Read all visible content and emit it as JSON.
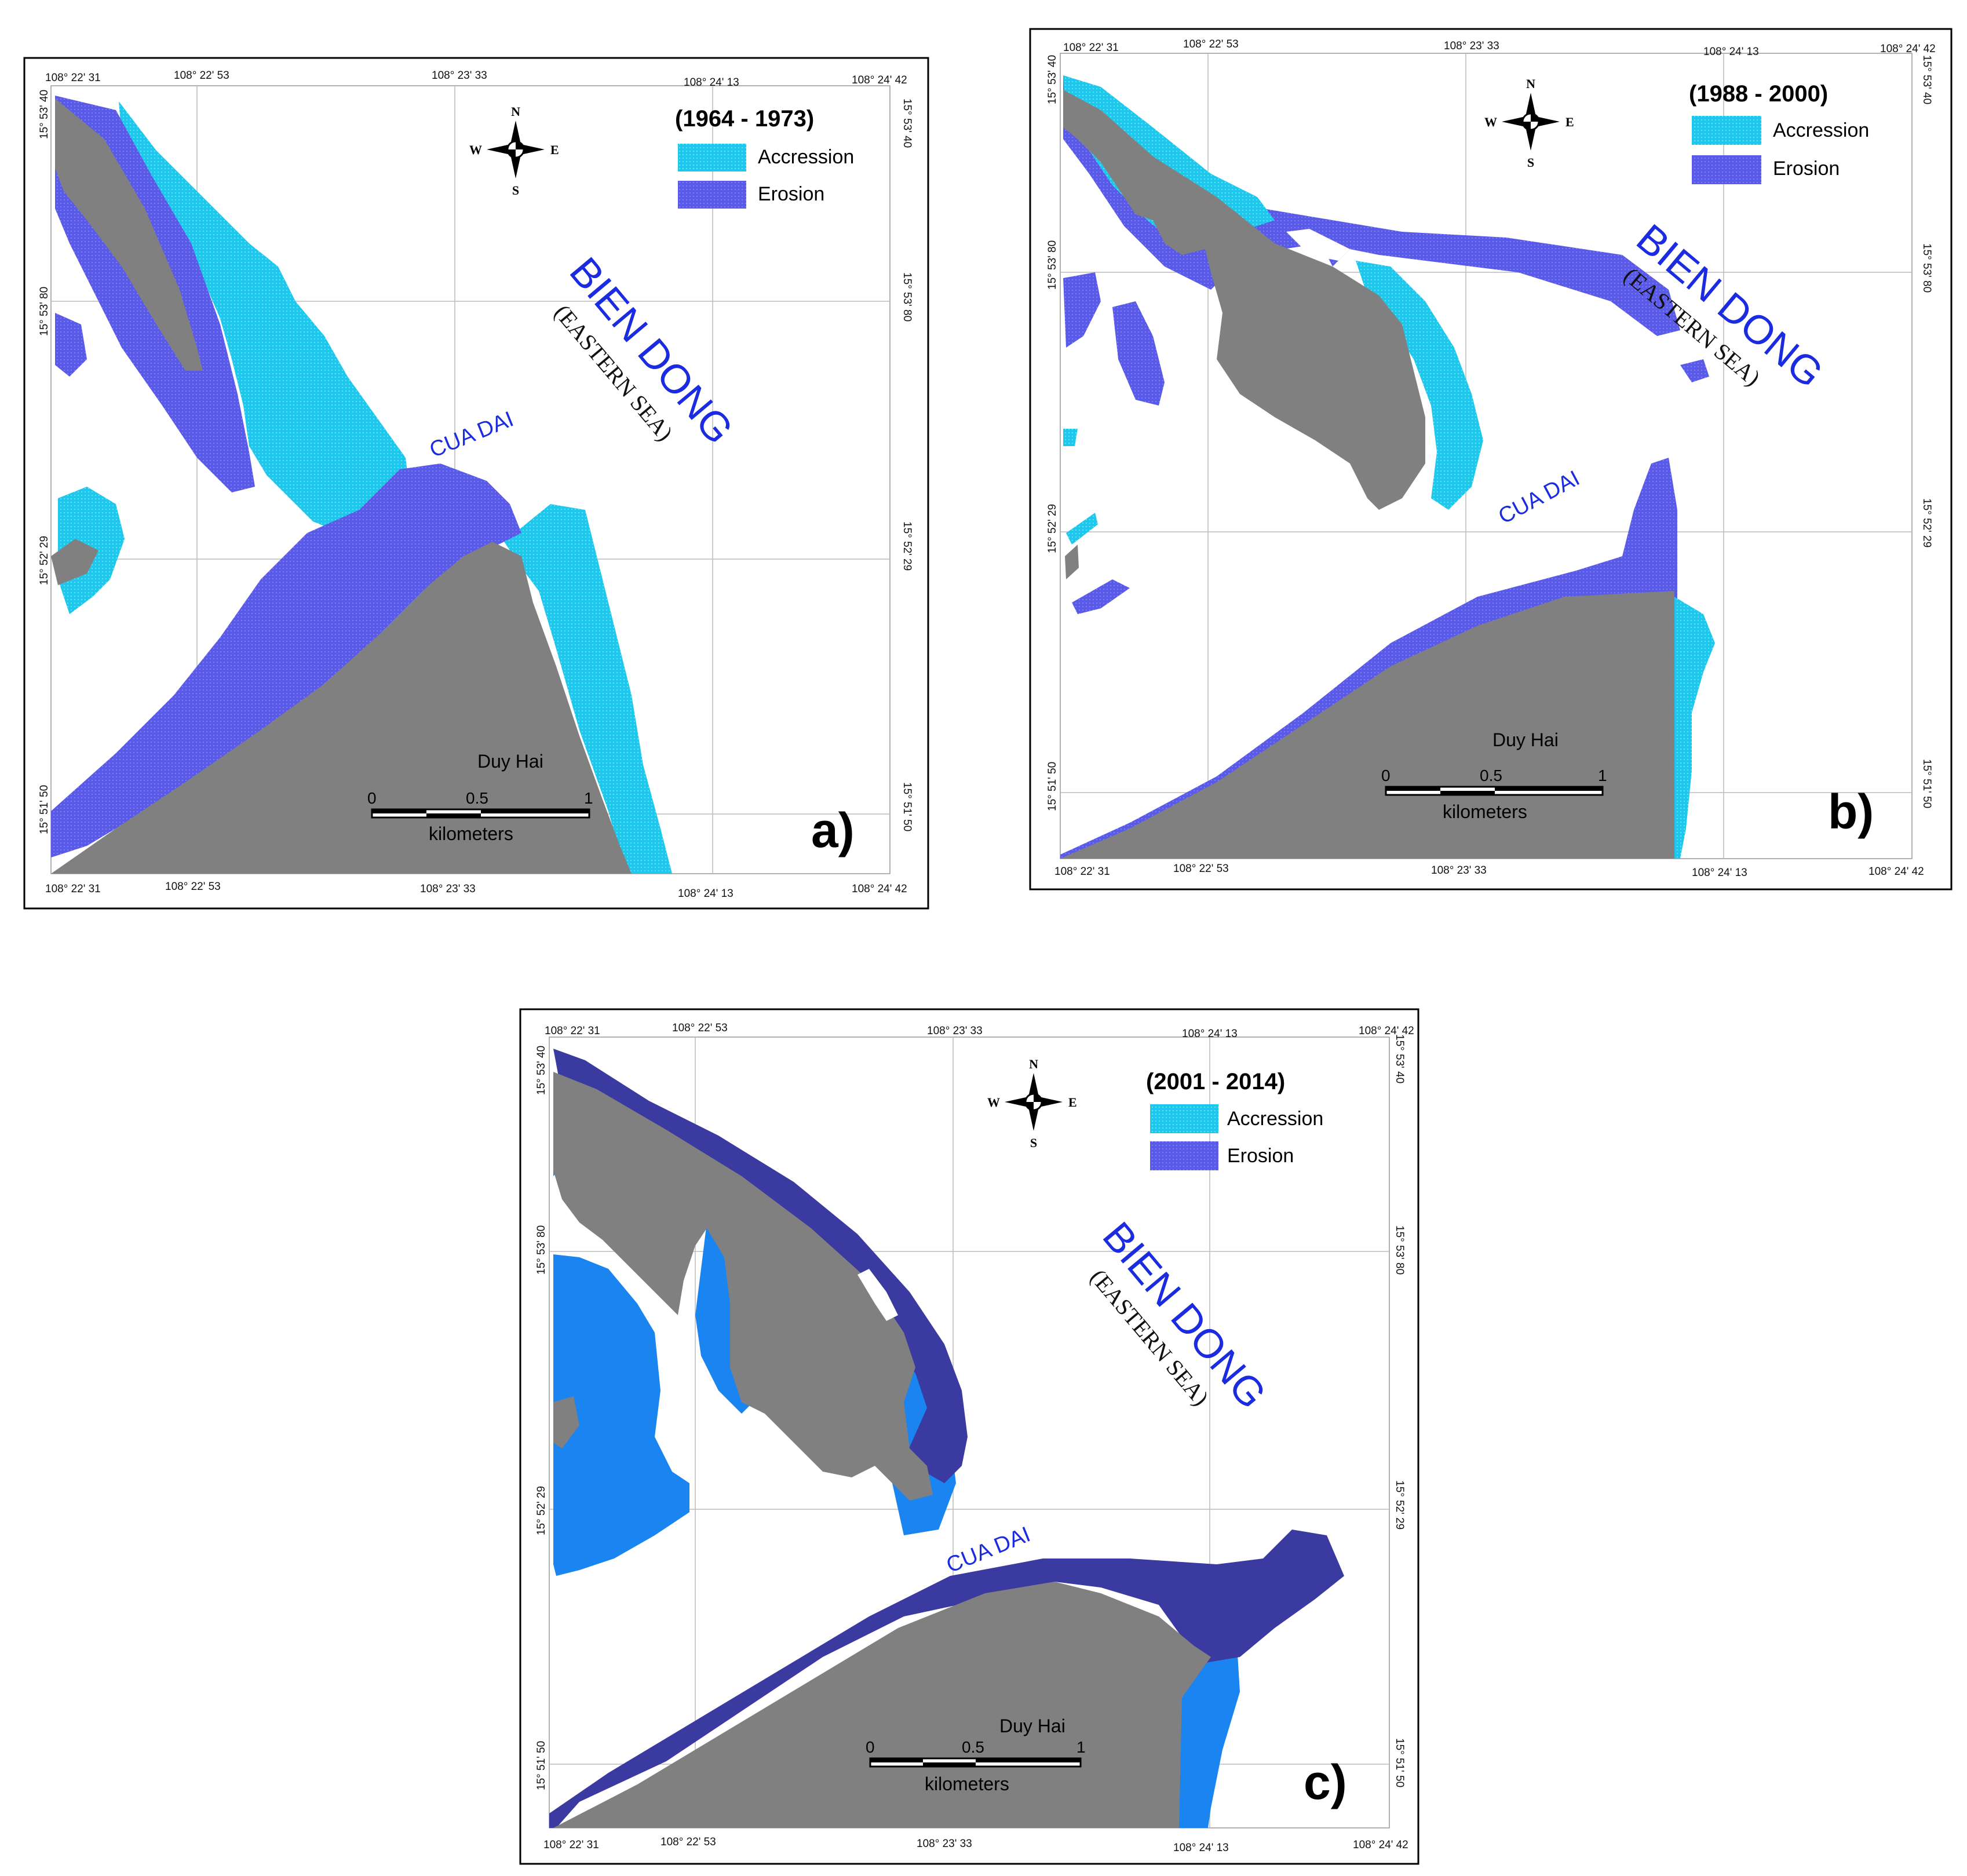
{
  "colors": {
    "land": "#808080",
    "accession_light": "#1ec8ec",
    "erosion_purple": "#5a5ae8",
    "accession_blue": "#1a84f0",
    "erosion_dark": "#3a3aa0",
    "sea_label": "#1a2be0"
  },
  "panels": [
    {
      "letter": "a)",
      "period": "(1964 - 1973)",
      "legend": [
        "Accression",
        "Erosion"
      ],
      "sea_label": "BIEN DONG",
      "sea_sub": "(EASTERN SEA)",
      "river_label": "CUA DAI",
      "place_label": "Duy Hai",
      "scale_labels": [
        "0",
        "0.5",
        "1"
      ],
      "scale_unit": "kilometers",
      "lon_labels": [
        "108° 22' 31",
        "108° 22' 53",
        "108° 23' 33",
        "108° 24' 13",
        "108° 24' 42"
      ],
      "lat_labels": [
        "15° 53' 40",
        "15° 53' 80",
        "15° 52' 29",
        "15° 51' 50"
      ]
    },
    {
      "letter": "b)",
      "period": "(1988 - 2000)",
      "legend": [
        "Accression",
        "Erosion"
      ],
      "sea_label": "BIEN DONG",
      "sea_sub": "(EASTERN SEA)",
      "river_label": "CUA DAI",
      "place_label": "Duy Hai",
      "scale_labels": [
        "0",
        "0.5",
        "1"
      ],
      "scale_unit": "kilometers",
      "lon_labels": [
        "108° 22' 31",
        "108° 22' 53",
        "108° 23' 33",
        "108° 24' 13",
        "108° 24' 42"
      ],
      "lat_labels": [
        "15° 53' 40",
        "15° 53' 80",
        "15° 52' 29",
        "15° 51' 50"
      ]
    },
    {
      "letter": "c)",
      "period": "(2001 - 2014)",
      "legend": [
        "Accression",
        "Erosion"
      ],
      "sea_label": "BIEN DONG",
      "sea_sub": "(EASTERN SEA)",
      "river_label": "CUA DAI",
      "place_label": "Duy Hai",
      "scale_labels": [
        "0",
        "0.5",
        "1"
      ],
      "scale_unit": "kilometers",
      "lon_labels": [
        "108° 22' 31",
        "108° 22' 53",
        "108° 23' 33",
        "108° 24' 13",
        "108° 24' 42"
      ],
      "lat_labels": [
        "15° 53' 40",
        "15° 53' 80",
        "15° 52' 29",
        "15° 51' 50"
      ]
    }
  ],
  "compass": {
    "n": "N",
    "s": "S",
    "e": "E",
    "w": "W"
  }
}
